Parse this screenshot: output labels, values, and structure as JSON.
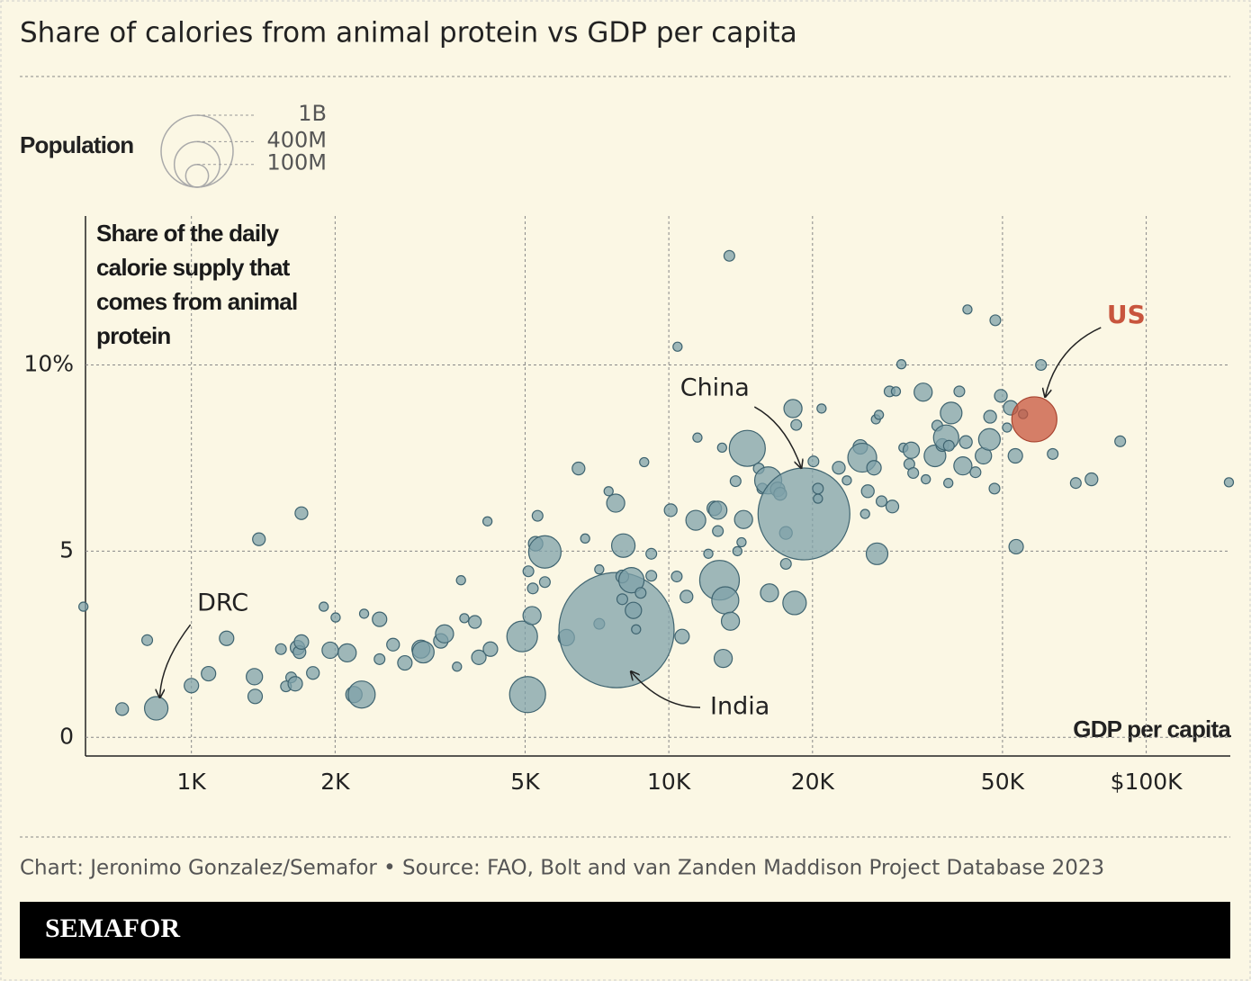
{
  "chart_data": {
    "type": "scatter",
    "title": "Share of calories from animal protein vs GDP per capita",
    "y_label": "Share of the daily calorie supply that comes from animal protein",
    "x_label": "GDP per capita",
    "x_scale": "log",
    "xlim": [
      600,
      150000
    ],
    "xticks": [
      {
        "value": 1000,
        "label": "1K"
      },
      {
        "value": 2000,
        "label": "2K"
      },
      {
        "value": 5000,
        "label": "5K"
      },
      {
        "value": 10000,
        "label": "10K"
      },
      {
        "value": 20000,
        "label": "20K"
      },
      {
        "value": 50000,
        "label": "50K"
      },
      {
        "value": 100000,
        "label": "$100K"
      }
    ],
    "ylim": [
      -0.5,
      14
    ],
    "yticks": [
      0,
      5,
      {
        "value": 10,
        "label": "10%"
      }
    ],
    "grid": true,
    "color": "#7fa2aa",
    "size_legend": {
      "title": "Population",
      "sizes": [
        {
          "value": 1000,
          "label": "1B"
        },
        {
          "value": 400,
          "label": "400M"
        },
        {
          "value": 100,
          "label": "100M"
        }
      ]
    },
    "x": [
      594,
      716,
      808,
      844,
      1000,
      1086,
      1185,
      1355,
      1360,
      1385,
      1540,
      1578,
      1618,
      1650,
      1668,
      1684,
      1700,
      1700,
      1797,
      1893,
      1953,
      2005,
      2120,
      2190,
      2273,
      2300,
      2478,
      2478,
      2645,
      2800,
      3025,
      3060,
      3330,
      3390,
      3600,
      3670,
      3730,
      3925,
      4000,
      4170,
      4230,
      4930,
      5060,
      5080,
      5170,
      5190,
      5260,
      5310,
      5500,
      5500,
      6100,
      6470,
      6680,
      7150,
      7150,
      7480,
      7740,
      7770,
      7990,
      7990,
      8030,
      8350,
      8430,
      8540,
      8730,
      8880,
      9190,
      9190,
      10090,
      10390,
      10430,
      10660,
      10890,
      11390,
      11480,
      12100,
      12450,
      12670,
      12670,
      12770,
      12930,
      13000,
      13130,
      13390,
      13460,
      13920,
      14200,
      14340,
      13800,
      14600,
      15430,
      15700,
      16150,
      16250,
      16900,
      17110,
      17590,
      17590,
      18200,
      18340,
      18490,
      19190,
      20090,
      20530,
      20530,
      20890,
      22700,
      23600,
      25180,
      25420,
      26110,
      25770,
      26900,
      27150,
      27550,
      27300,
      27900,
      29000,
      29390,
      29900,
      30700,
      31000,
      31900,
      32200,
      32500,
      34540,
      34100,
      36100,
      36500,
      37400,
      38100,
      38600,
      38500,
      39030,
      40600,
      41300,
      41900,
      42220,
      43890,
      45600,
      46940,
      47100,
      48100,
      48300,
      49600,
      51100,
      52000,
      53200,
      53400,
      55200,
      58300,
      60200,
      63700,
      71200,
      76800,
      88200,
      149000
    ],
    "values": [
      3.51,
      0.76,
      2.61,
      0.78,
      1.39,
      1.71,
      2.66,
      1.63,
      1.1,
      5.32,
      2.37,
      1.37,
      1.61,
      1.44,
      2.41,
      2.29,
      6.02,
      2.56,
      1.73,
      3.51,
      2.34,
      3.22,
      2.27,
      1.15,
      1.15,
      3.32,
      3.17,
      2.1,
      2.49,
      2.0,
      2.37,
      2.29,
      2.59,
      2.78,
      1.9,
      4.22,
      3.2,
      3.1,
      2.15,
      5.8,
      2.37,
      2.71,
      1.15,
      4.46,
      3.27,
      4.0,
      5.2,
      5.95,
      4.98,
      4.17,
      2.68,
      7.22,
      5.34,
      4.51,
      3.05,
      6.61,
      6.29,
      2.88,
      3.71,
      4.32,
      5.15,
      4.22,
      3.41,
      2.9,
      3.88,
      7.39,
      4.93,
      4.34,
      6.1,
      4.32,
      10.49,
      2.71,
      3.78,
      5.83,
      8.05,
      4.93,
      6.15,
      6.1,
      5.54,
      4.22,
      7.78,
      2.12,
      3.68,
      12.93,
      3.12,
      5.0,
      5.24,
      5.85,
      6.88,
      7.76,
      7.22,
      6.68,
      6.9,
      3.88,
      6.66,
      6.54,
      4.66,
      5.49,
      8.83,
      3.61,
      8.39,
      6.0,
      7.41,
      6.68,
      6.41,
      8.83,
      7.24,
      6.9,
      7.8,
      7.51,
      6.61,
      6.0,
      7.24,
      8.54,
      8.66,
      4.93,
      6.34,
      9.29,
      6.2,
      9.29,
      10.02,
      7.78,
      7.34,
      7.71,
      7.1,
      6.93,
      9.27,
      7.56,
      8.37,
      7.85,
      8.05,
      7.83,
      6.83,
      8.71,
      9.29,
      7.29,
      7.93,
      11.49,
      7.12,
      7.56,
      8.0,
      8.61,
      6.68,
      11.2,
      9.17,
      8.32,
      8.85,
      7.56,
      5.12,
      8.68,
      8.54,
      10.0,
      7.61,
      6.83,
      6.93,
      7.95,
      6.85
    ],
    "sizes": [
      16,
      31,
      22,
      106,
      40,
      40,
      40,
      51,
      40,
      31,
      22,
      22,
      22,
      40,
      40,
      31,
      31,
      40,
      31,
      16,
      51,
      16,
      63,
      51,
      141,
      16,
      40,
      22,
      31,
      40,
      63,
      90,
      40,
      63,
      16,
      16,
      16,
      31,
      40,
      16,
      40,
      181,
      250,
      22,
      63,
      22,
      40,
      22,
      203,
      22,
      51,
      31,
      16,
      16,
      22,
      16,
      63,
      2560,
      22,
      31,
      106,
      123,
      51,
      16,
      22,
      16,
      22,
      22,
      31,
      22,
      16,
      40,
      31,
      76,
      16,
      16,
      40,
      63,
      22,
      303,
      16,
      63,
      141,
      22,
      63,
      16,
      16,
      63,
      22,
      250,
      22,
      22,
      141,
      63,
      40,
      31,
      22,
      31,
      63,
      106,
      22,
      1626,
      22,
      22,
      16,
      16,
      31,
      16,
      40,
      160,
      31,
      16,
      40,
      16,
      16,
      90,
      22,
      22,
      31,
      16,
      16,
      16,
      22,
      51,
      22,
      16,
      63,
      90,
      22,
      31,
      123,
      22,
      16,
      90,
      22,
      63,
      31,
      16,
      22,
      51,
      90,
      31,
      22,
      22,
      31,
      16,
      40,
      40,
      40,
      16,
      391,
      22,
      22,
      22,
      31,
      22,
      16
    ],
    "annotations": [
      {
        "text": "DRC",
        "point": 3
      },
      {
        "text": "China",
        "point": 101
      },
      {
        "text": "India",
        "point": 57
      },
      {
        "text": "US",
        "point": 150,
        "color": "#c8553d"
      }
    ],
    "source": "Chart: Jeronimo Gonzalez/Semafor • Source: FAO, Bolt and van Zanden Maddison Project Database 2023",
    "brand": "SEMAFOR"
  }
}
